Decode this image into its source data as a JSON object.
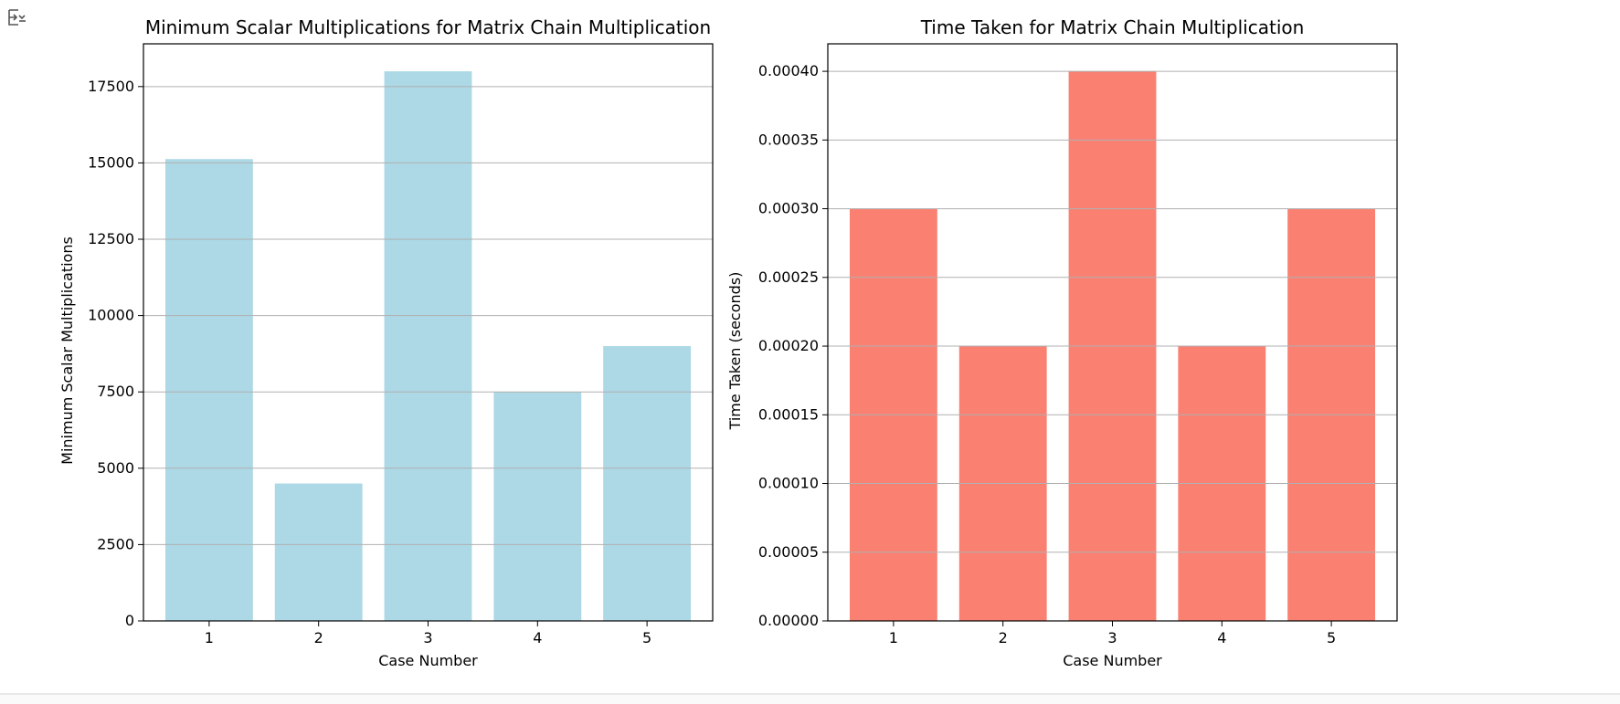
{
  "cell": {
    "output_icon": "output-toggle-icon"
  },
  "chart_data": [
    {
      "type": "bar",
      "title": "Minimum Scalar Multiplications for Matrix Chain Multiplication",
      "xlabel": "Case Number",
      "ylabel": "Minimum Scalar Multiplications",
      "categories": [
        "1",
        "2",
        "3",
        "4",
        "5"
      ],
      "values": [
        15125,
        4500,
        18000,
        7500,
        9000
      ],
      "ylim": [
        0,
        18900
      ],
      "yticks": [
        0,
        2500,
        5000,
        7500,
        10000,
        12500,
        15000,
        17500
      ],
      "ytick_labels": [
        "0",
        "2500",
        "5000",
        "7500",
        "10000",
        "12500",
        "15000",
        "17500"
      ],
      "color": "#add8e6",
      "grid": "y"
    },
    {
      "type": "bar",
      "title": "Time Taken for Matrix Chain Multiplication",
      "xlabel": "Case Number",
      "ylabel": "Time Taken (seconds)",
      "categories": [
        "1",
        "2",
        "3",
        "4",
        "5"
      ],
      "values": [
        0.0003,
        0.0002,
        0.0004,
        0.0002,
        0.0003
      ],
      "ylim": [
        0,
        0.00042
      ],
      "yticks": [
        0,
        5e-05,
        0.0001,
        0.00015,
        0.0002,
        0.00025,
        0.0003,
        0.00035,
        0.0004
      ],
      "ytick_labels": [
        "0.00000",
        "0.00005",
        "0.00010",
        "0.00015",
        "0.00020",
        "0.00025",
        "0.00030",
        "0.00035",
        "0.00040"
      ],
      "color": "#fa8072",
      "grid": "y"
    }
  ]
}
